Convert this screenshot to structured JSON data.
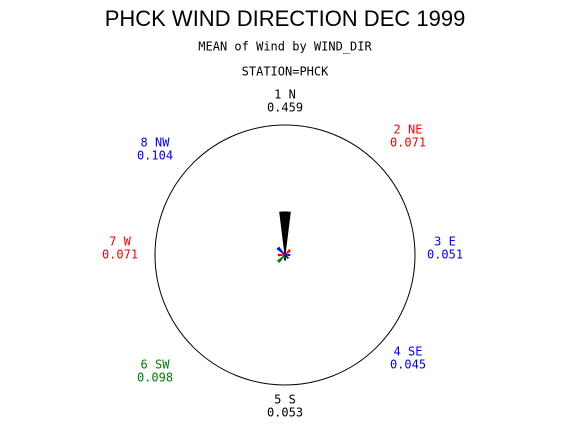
{
  "chart_data": {
    "type": "star",
    "title": "PHCK WIND DIRECTION DEC 1999",
    "subtitle": "MEAN of Wind by WIND_DIR",
    "station": "STATION=PHCK",
    "categories": [
      "1 N",
      "2 NE",
      "3 E",
      "4 SE",
      "5 S",
      "6 SW",
      "7 W",
      "8 NW"
    ],
    "values": [
      0.459,
      0.071,
      0.051,
      0.045,
      0.053,
      0.098,
      0.071,
      0.104
    ],
    "colors": [
      "#000000",
      "#ff0000",
      "#0000ff",
      "#0000ff",
      "#000000",
      "#008000",
      "#ff0000",
      "#0000ff"
    ]
  }
}
